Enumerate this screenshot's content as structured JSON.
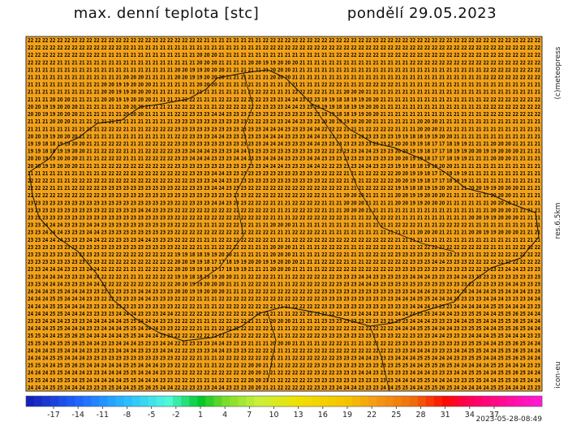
{
  "header": {
    "title": "max. denní teplota [stc]",
    "date": "pondělí 29.05.2023"
  },
  "side": {
    "credit": "(c)meteopress",
    "resolution": "res.6.5km",
    "model": "icon-eu"
  },
  "grid": {
    "rows": [
      "22 22 22 22 22 22 22 22 22 22 22 22 22 22 22 22 22 22 22 22 22 22 22 22 21 21 21 21 21 21 21 21 22 22 22 22 22 22 22 22 22 22 22 22 22 22 22 22 22 22 22 22 22 22 22 22 22 22 22 22 22 22 22 22 22 22 22 22 22 22",
      "22 22 22 22 22 22 22 22 22 22 22 22 22 22 21 21 21 21 21 21 21 21 21 21 21 21 21 21 21 21 21 21 22 22 22 22 22 22 22 22 22 22 22 22 22 22 22 22 22 22 22 22 22 22 22 22 22 22 22 22 22 22 22 22 22 22 22 22 22 22",
      "22 22 22 22 22 22 22 22 22 22 21 21 21 21 21 21 21 21 21 21 21 21 21 20 20 20 21 21 21 21 21 21 21 21 21 21 21 21 21 21 21 21 22 22 22 22 22 22 22 22 22 22 22 22 22 22 22 22 22 22 22 22 22 22 22 22 22 22 22 22",
      "22 22 22 22 21 21 21 21 21 21 21 21 21 21 21 21 21 21 21 21 21 21 21 20 20 20 21 21 21 21 20 20 19 19 20 20 20 21 21 21 21 21 21 21 21 21 21 21 21 21 21 21 22 22 22 22 22 22 22 22 22 22 22 22 22 22 22 22 22 22",
      "21 21 21 21 21 21 21 21 21 21 21 21 21 21 21 21 21 21 21 21 20 20 19 19 20 20 20 21 21 21 21 21 21 20 20 20 21 21 21 21 21 21 21 21 21 21 21 21 21 21 21 21 21 21 21 21 21 21 21 21 21 21 22 22 22 22 22 22 22 22",
      "21 21 21 21 21 21 21 21 21 21 21 21 21 20 20 20 21 21 21 21 20 20 19 19 20 20 20 21 21 21 21 21 21 20 20 20 21 21 21 21 21 21 21 21 21 21 21 21 21 21 21 21 21 21 21 21 21 21 21 21 21 21 22 22 22 22 22 22 22 22",
      "21 21 21 21 21 21 21 21 21 21 20 20 19 19 20 20 20 21 21 21 21 21 21 20 20 20 21 21 21 21 21 21 21 21 21 21 21 21 21 21 22 22 22 21 21 21 22 22 22 22 21 21 21 21 21 21 21 21 21 21 21 21 21 21 21 21 21 21 21 21",
      "21 21 21 21 21 21 21 21 21 21 20 20 19 19 20 20 20 21 21 21 21 21 21 21 21 21 21 21 21 21 22 22 22 21 21 21 22 22 22 22 21 21 21 20 20 20 21 21 21 21 21 21 21 21 21 21 21 21 21 21 21 21 21 21 21 21 21 21 21 21",
      "21 21 21 20 20 20 21 21 21 21 20 20 19 19 20 20 20 21 21 21 22 22 22 21 21 21 22 22 22 22 22 22 23 23 23 24 24 23 23 23 19 19 18 18 19 19 20 20 21 21 21 21 21 21 21 21 21 21 21 21 21 21 22 22 22 22 22 22 22 22",
      "20 20 19 19 20 20 20 21 21 21 21 21 21 20 20 20 21 21 21 21 22 22 22 21 21 21 22 22 22 22 22 22 23 23 23 24 24 23 23 23 19 19 18 18 19 19 20 20 21 21 21 21 21 21 21 21 21 21 21 21 21 21 22 22 22 22 22 22 22 22",
      "20 20 19 19 20 20 20 21 21 21 21 21 21 20 20 20 21 21 21 21 22 22 23 23 23 24 24 23 23 23 23 23 23 23 23 23 23 23 23 23 19 19 18 18 19 19 20 20 21 21 21 21 21 21 21 21 21 21 21 21 21 21 22 22 22 22 22 22 22 22",
      "21 21 21 20 20 20 21 21 21 21 21 21 21 21 21 21 21 21 21 21 23 23 23 23 23 23 23 23 23 23 22 22 23 23 23 24 24 23 23 23 20 20 19 19 20 20 20 21 21 21 21 21 21 20 20 20 21 21 21 21 21 21 21 21 21 21 21 21 21 21",
      "21 21 21 21 21 21 21 21 21 21 22 22 22 21 21 21 22 22 22 22 23 23 23 23 23 23 23 23 23 23 23 23 24 24 24 23 23 23 24 24 22 22 22 21 21 21 22 22 22 22 21 21 21 20 20 20 21 21 21 21 21 21 21 21 21 21 21 21 21 21",
      "20 20 19 19 20 20 20 21 21 21 21 21 21 21 21 21 21 21 21 21 22 22 23 23 23 24 24 23 23 23 23 23 24 24 24 23 23 23 24 24 23 23 23 23 23 23 23 23 23 23 19 19 18 18 19 19 20 20 21 21 21 21 21 21 21 21 21 21 21 21",
      "19 19 18 18 19 19 20 20 21 21 22 22 22 21 21 21 22 22 22 22 23 23 23 23 23 23 23 23 23 23 23 23 24 24 24 23 23 23 24 24 23 23 23 23 23 23 23 23 23 23 20 20 19 19 18 17 17 18 19 19 21 21 21 20 20 20 21 21 21 21",
      "19 19 18 18 19 19 20 20 21 21 22 22 22 21 21 21 22 22 22 22 23 23 24 24 24 23 23 23 24 24 23 23 23 23 23 23 23 23 23 23 22 22 23 23 23 24 24 23 23 23 20 20 19 19 18 17 17 18 19 19 20 20 19 19 20 20 20 21 21 21",
      "20 20 19 19 20 20 20 21 21 21 22 22 22 21 21 21 22 22 22 22 23 23 24 24 24 23 23 23 24 24 23 23 24 24 24 23 23 23 24 24 23 23 23 23 23 23 23 23 23 23 20 20 19 19 18 17 17 18 19 19 21 21 21 20 20 20 21 21 21 21",
      "20 20 19 19 20 20 20 21 21 21 22 22 22 22 22 22 22 22 22 22 23 23 23 23 23 23 23 23 23 23 23 23 24 24 24 23 23 23 24 24 22 22 23 23 23 24 24 23 23 23 19 19 18 18 19 19 20 20 21 21 21 21 21 21 21 21 21 21 21 21",
      "21 21 21 21 21 21 21 21 21 21 22 22 22 22 22 22 22 22 22 22 22 22 23 23 23 24 24 23 23 23 23 23 23 23 23 23 23 23 23 23 22 22 22 21 21 21 22 22 22 22 20 20 19 19 18 17 17 18 19 19 21 21 21 21 21 21 21 21 21 21",
      "22 22 22 21 21 21 22 22 22 22 22 22 22 22 22 22 22 22 22 22 22 22 23 23 23 24 24 23 23 23 23 23 23 23 23 23 23 23 23 23 22 22 22 21 21 21 22 22 22 22 20 20 19 19 18 17 17 18 19 19 21 21 21 21 21 21 21 21 21 21",
      "22 22 22 21 21 21 22 22 22 22 23 23 23 23 23 23 23 23 23 23 22 22 23 23 23 24 24 23 23 23 22 22 22 22 22 22 22 22 22 22 22 22 22 21 21 21 22 22 22 22 19 19 18 18 19 19 20 20 21 21 20 20 19 19 20 20 20 21 21 21",
      "22 22 22 22 22 22 22 22 22 22 23 23 23 23 23 23 23 23 23 23 23 23 23 23 23 23 23 23 23 23 22 22 22 22 22 22 22 22 22 22 21 21 21 20 20 20 21 21 21 21 20 20 19 19 20 20 20 21 21 21 21 21 21 20 20 20 21 21 21 21",
      "23 23 23 23 23 23 23 23 23 23 23 23 23 23 23 23 23 23 23 23 22 22 23 23 23 24 24 23 23 23 22 22 22 21 21 21 22 22 22 22 21 21 21 20 20 20 21 21 21 21 20 20 19 19 20 20 20 21 21 21 21 21 21 20 20 20 21 21 21 21",
      "23 23 23 23 23 23 23 23 23 23 22 22 23 23 23 24 24 23 23 23 22 22 22 22 22 22 22 22 22 22 22 22 22 21 21 21 22 22 22 22 21 21 21 20 20 20 21 21 21 21 21 21 21 21 21 21 21 21 21 21 21 21 21 20 20 20 21 21 21 21",
      "23 23 23 23 23 23 23 23 23 23 23 23 23 23 23 23 23 23 23 23 22 22 22 22 22 22 22 22 22 22 22 22 22 21 21 21 22 22 22 22 22 22 22 21 21 21 22 22 22 22 21 21 21 21 21 21 21 21 21 21 20 20 19 19 20 20 20 21 21 21",
      "23 23 24 24 24 23 23 23 24 24 23 23 23 23 23 23 23 23 23 23 22 22 22 21 21 21 22 22 22 22 21 21 21 20 20 20 21 21 21 21 21 21 21 21 21 21 21 21 21 21 22 22 22 21 21 21 22 22 22 22 21 21 21 21 21 21 21 21 21 21",
      "23 23 24 24 24 23 23 23 24 24 23 23 23 23 23 23 23 23 23 23 22 22 22 22 22 22 22 22 22 22 22 22 22 21 21 21 22 22 22 22 21 21 21 21 21 21 21 21 21 21 21 21 21 20 20 20 21 21 21 21 20 20 19 19 20 20 20 21 21 21",
      "23 23 24 24 24 23 23 23 24 24 22 22 23 23 23 24 24 23 23 23 22 22 22 21 21 21 22 22 22 22 22 22 22 21 21 21 22 22 22 22 22 22 22 22 22 22 22 22 22 22 21 21 21 21 21 21 21 21 21 21 21 21 21 21 21 21 21 21 21 21",
      "23 23 23 23 23 23 23 23 23 23 23 23 23 23 23 23 23 23 23 23 22 22 22 21 21 21 22 22 22 22 21 21 21 20 20 20 21 21 21 21 22 22 22 21 21 21 22 22 22 22 21 21 22 22 22 22 22 22 22 22 22 22 22 21 21 21 22 22 22 22",
      "23 23 23 23 23 23 23 23 23 23 22 22 22 22 22 22 22 22 22 22 19 19 18 18 19 19 20 20 21 21 21 21 21 20 20 20 21 21 21 21 22 22 22 21 21 21 22 22 22 22 23 23 23 23 23 23 23 23 23 23 21 21 22 22 22 22 22 22 22 22",
      "23 23 23 23 23 23 23 23 23 23 22 22 22 22 22 22 22 22 22 22 20 20 19 19 18 17 17 18 19 19 20 20 19 19 20 20 20 21 21 21 22 22 22 21 21 21 22 22 22 22 22 22 23 23 23 24 24 23 23 23 22 22 22 22 22 22 22 22 22 22",
      "23 23 24 24 24 23 23 23 24 24 22 22 22 21 21 21 22 22 22 22 20 20 19 19 18 17 17 18 19 19 21 21 21 20 20 20 21 21 21 21 22 22 22 22 22 22 22 22 22 22 23 23 23 23 23 23 23 23 23 23 22 22 23 23 23 24 24 23 23 23",
      "23 23 24 24 24 23 23 23 24 24 22 22 22 21 21 21 22 22 22 22 19 19 18 18 19 19 20 20 21 21 22 22 22 21 21 21 22 22 22 22 22 22 23 23 23 24 24 23 23 23 23 23 24 24 24 23 23 23 24 24 23 23 23 23 23 23 23 23 23 23",
      "23 23 24 24 24 23 23 23 24 24 22 22 22 22 22 22 22 22 22 22 20 20 19 19 20 20 20 21 21 21 22 22 22 21 21 21 22 22 22 22 22 22 23 23 23 24 24 23 23 23 23 23 23 23 23 23 23 23 23 23 22 22 23 23 23 24 24 23 23 23",
      "24 24 24 25 25 24 24 24 23 23 22 22 23 23 23 24 24 23 23 23 20 20 19 19 20 20 20 21 21 21 22 22 22 22 22 22 22 22 22 22 23 23 23 23 23 23 23 23 23 23 23 23 24 24 24 23 23 23 24 24 24 24 24 25 25 24 24 24 23 23",
      "24 24 24 25 25 24 24 24 23 23 22 22 23 23 23 24 24 23 23 23 22 22 22 21 21 21 22 22 22 22 22 22 22 22 22 22 22 22 22 22 23 23 23 23 23 23 23 23 23 23 24 24 24 25 25 24 24 24 23 23 23 23 24 24 24 23 23 23 24 24",
      "24 24 24 25 25 24 24 24 23 23 23 23 23 23 23 23 23 23 23 23 22 22 22 21 21 21 22 22 22 22 22 22 22 21 21 21 22 22 22 22 23 23 23 23 23 23 23 23 23 23 23 23 24 24 24 23 23 23 24 24 24 24 24 25 25 24 24 24 23 23",
      "24 24 24 25 25 24 24 24 23 23 23 23 24 24 24 23 23 23 24 24 22 22 22 22 22 22 22 22 22 22 22 22 22 21 21 21 22 22 22 22 22 22 23 23 23 24 24 23 23 23 24 24 24 25 25 24 24 24 23 23 25 25 24 24 25 25 26 25 24 24",
      "23 23 24 24 24 23 23 23 24 24 24 24 24 25 25 24 24 24 23 23 22 22 22 21 21 21 22 22 22 22 21 21 21 20 20 20 21 21 21 21 23 23 23 23 23 23 23 23 23 23 23 23 24 24 24 23 23 23 24 24 25 25 24 24 25 25 26 25 24 24",
      "24 24 24 25 25 24 24 24 23 23 24 24 24 25 25 24 24 24 23 23 22 22 22 21 21 21 22 22 22 22 22 22 22 21 21 21 22 22 22 22 22 22 22 22 22 22 22 22 22 22 24 24 24 25 25 24 24 24 23 23 25 25 24 24 25 25 26 25 24 24",
      "25 25 24 24 25 25 26 25 24 24 24 24 24 25 25 24 24 24 23 23 22 22 22 22 22 22 22 22 22 22 22 22 22 21 21 21 22 22 22 22 23 23 23 23 23 23 23 23 23 23 22 22 23 23 23 24 24 23 23 23 24 24 24 25 25 24 24 24 23 23",
      "25 25 24 24 25 25 26 25 24 24 23 23 24 24 24 23 23 23 24 24 22 22 23 23 23 24 24 23 23 23 21 21 21 20 20 20 21 21 21 21 22 22 22 21 21 21 22 22 22 22 23 23 23 23 23 23 23 23 23 23 25 25 24 24 25 25 26 25 24 24",
      "24 24 24 25 25 24 24 24 23 23 23 23 24 24 24 23 23 23 24 24 22 22 23 23 23 24 24 23 23 23 22 22 22 21 21 21 22 22 22 22 22 22 22 22 22 22 22 22 22 22 23 23 24 24 24 23 23 23 24 24 25 25 24 24 25 25 26 25 24 24",
      "24 24 24 25 25 24 24 24 23 23 23 23 23 23 23 23 23 23 23 23 22 22 22 21 21 21 22 22 22 22 22 22 22 21 21 21 22 22 22 22 22 22 23 23 23 24 24 23 23 23 24 24 24 25 25 24 24 24 23 23 25 25 24 24 25 25 26 25 24 24",
      "25 25 24 24 25 25 26 25 24 24 24 24 24 25 25 24 24 24 23 23 22 22 22 21 21 21 22 22 22 22 20 20 21 21 22 22 22 22 22 23 23 23 23 23 23 23 23 23 23 23 25 25 24 24 25 25 26 25 24 24 24 24 24 25 25 24 24 24 23 23",
      "24 24 24 25 25 24 24 24 23 23 24 24 24 25 25 24 24 24 23 23 22 22 22 22 22 22 22 22 22 22 20 20 21 21 22 22 22 22 22 23 22 22 23 23 23 24 24 23 23 23 23 23 24 24 24 23 23 23 24 24 25 25 24 24 25 25 26 25 24 24",
      "25 25 24 24 25 25 26 25 24 24 24 24 24 25 25 24 24 24 23 23 22 22 22 21 21 21 22 22 22 22 20 20 21 21 22 22 22 22 22 23 23 23 23 23 23 23 23 23 23 23 24 24 24 25 25 24 24 24 23 23 25 25 24 24 25 25 26 25 24 24",
      "24 24 24 25 25 24 24 24 23 23 25 25 24 24 25 25 26 25 24 24 22 22 23 23 23 24 24 23 23 23 20 20 21 21 22 22 22 22 22 23 23 23 24 24 24 23 23 23 24 24 25 25 24 24 25 25 26 25 24 24 24 24 24 25 25 24 24 24 23 23"
    ]
  },
  "colorbar": {
    "ticks": [
      -17,
      -14,
      -11,
      -8,
      -5,
      -2,
      1,
      4,
      7,
      10,
      13,
      16,
      19,
      22,
      25,
      28,
      31,
      34,
      37
    ]
  },
  "timestamp": "2023-05-28-08:49"
}
